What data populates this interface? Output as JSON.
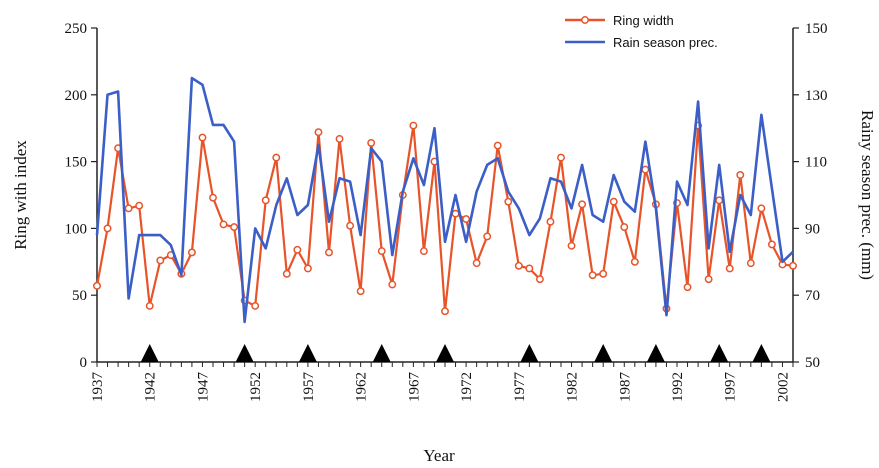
{
  "chart_data": {
    "type": "line",
    "xlabel": "Year",
    "ylabel_left": "Ring with index",
    "ylabel_right": "Rainy season prec. (mm)",
    "x_ticks": [
      1937,
      1942,
      1947,
      1952,
      1957,
      1962,
      1967,
      1972,
      1977,
      1982,
      1987,
      1992,
      1997,
      2002
    ],
    "xlim": [
      1937,
      2003
    ],
    "ylim_left": [
      0,
      250
    ],
    "y_ticks_left": [
      0,
      50,
      100,
      150,
      200,
      250
    ],
    "ylim_right": [
      50,
      150
    ],
    "y_ticks_right": [
      50,
      70,
      90,
      110,
      130,
      150
    ],
    "grid": false,
    "legend_position": "top-right",
    "series": [
      {
        "name": "Ring width",
        "axis": "left",
        "color": "#e8542a",
        "marker": "open-circle",
        "x": [
          1937,
          1938,
          1939,
          1940,
          1941,
          1942,
          1943,
          1944,
          1945,
          1946,
          1947,
          1948,
          1949,
          1950,
          1951,
          1952,
          1953,
          1954,
          1955,
          1956,
          1957,
          1958,
          1959,
          1960,
          1961,
          1962,
          1963,
          1964,
          1965,
          1966,
          1967,
          1968,
          1969,
          1970,
          1971,
          1972,
          1973,
          1974,
          1975,
          1976,
          1977,
          1978,
          1979,
          1980,
          1981,
          1982,
          1983,
          1984,
          1985,
          1986,
          1987,
          1988,
          1989,
          1990,
          1991,
          1992,
          1993,
          1994,
          1995,
          1996,
          1997,
          1998,
          1999,
          2000,
          2001,
          2002,
          2003
        ],
        "values": [
          57,
          100,
          160,
          115,
          117,
          42,
          76,
          80,
          66,
          82,
          168,
          123,
          103,
          101,
          46,
          42,
          121,
          153,
          66,
          84,
          70,
          172,
          82,
          167,
          102,
          53,
          164,
          83,
          58,
          125,
          177,
          83,
          150,
          38,
          111,
          107,
          74,
          94,
          162,
          120,
          72,
          70,
          62,
          105,
          153,
          87,
          118,
          65,
          66,
          120,
          101,
          75,
          144,
          118,
          40,
          119,
          56,
          177,
          62,
          121,
          70,
          140,
          74,
          115,
          88,
          73,
          72
        ]
      },
      {
        "name": "Rain season prec.",
        "axis": "right",
        "color": "#3b5fc7",
        "x": [
          1937,
          1938,
          1939,
          1940,
          1941,
          1942,
          1943,
          1944,
          1945,
          1946,
          1947,
          1948,
          1949,
          1950,
          1951,
          1952,
          1953,
          1954,
          1955,
          1956,
          1957,
          1958,
          1959,
          1960,
          1961,
          1962,
          1963,
          1964,
          1965,
          1966,
          1967,
          1968,
          1969,
          1970,
          1971,
          1972,
          1973,
          1974,
          1975,
          1976,
          1977,
          1978,
          1979,
          1980,
          1981,
          1982,
          1983,
          1984,
          1985,
          1986,
          1987,
          1988,
          1989,
          1990,
          1991,
          1992,
          1993,
          1994,
          1995,
          1996,
          1997,
          1998,
          1999,
          2000,
          2001,
          2002,
          2003
        ],
        "values": [
          88,
          130,
          131,
          69,
          88,
          88,
          88,
          85,
          76,
          135,
          133,
          121,
          121,
          116,
          62,
          90,
          84,
          97,
          105,
          94,
          97,
          115,
          92,
          105,
          104,
          88,
          114,
          110,
          82,
          101,
          111,
          103,
          120,
          86,
          100,
          86,
          101,
          109,
          111,
          101,
          96,
          88,
          93,
          105,
          104,
          96,
          109,
          94,
          92,
          106,
          98,
          95,
          116,
          96,
          64,
          104,
          97,
          128,
          84,
          109,
          83,
          100,
          94,
          124,
          102,
          80,
          83
        ]
      }
    ],
    "annotations": {
      "markers": "triangle",
      "years": [
        1942,
        1951,
        1957,
        1964,
        1970,
        1978,
        1985,
        1990,
        1996,
        2000
      ]
    }
  }
}
